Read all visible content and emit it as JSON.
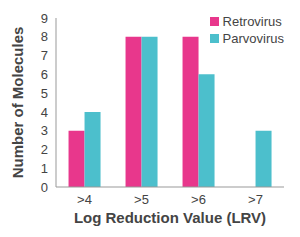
{
  "chart_data": {
    "type": "bar",
    "categories": [
      ">4",
      ">5",
      ">6",
      ">7"
    ],
    "series": [
      {
        "name": "Retrovirus",
        "color": "#e8378c",
        "values": [
          3,
          8,
          8,
          0
        ]
      },
      {
        "name": "Parvovirus",
        "color": "#4cbfcc",
        "values": [
          4,
          8,
          6,
          3
        ]
      }
    ],
    "x_label": "Log Reduction Value (LRV)",
    "y_label": "Number of Molecules",
    "ylim": [
      0,
      9
    ],
    "yticks": [
      0,
      1,
      2,
      3,
      4,
      5,
      6,
      7,
      8,
      9
    ],
    "grid": false,
    "legend": "top-right"
  }
}
